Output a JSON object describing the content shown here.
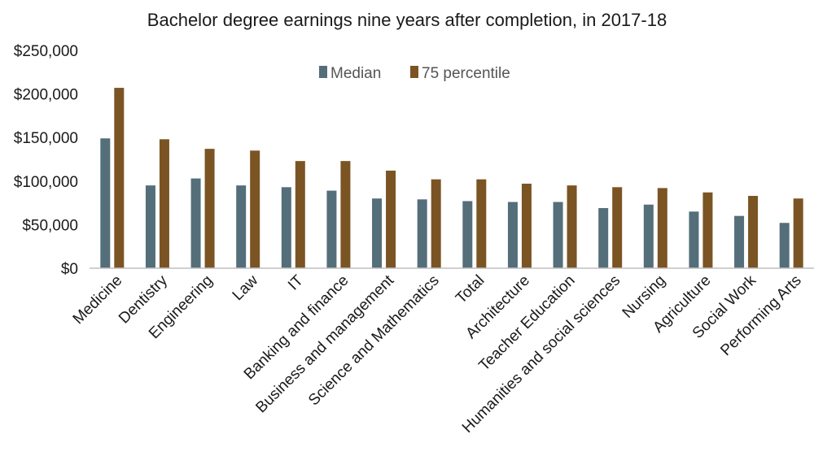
{
  "chart_data": {
    "type": "bar",
    "title": "Bachelor degree earnings nine years after completion, in 2017-18",
    "xlabel": "",
    "ylabel": "",
    "ylim": [
      0,
      250000
    ],
    "yticks": [
      0,
      50000,
      100000,
      150000,
      200000,
      250000
    ],
    "ytick_labels": [
      "$0",
      "$50,000",
      "$100,000",
      "$150,000",
      "$200,000",
      "$250,000"
    ],
    "grid": false,
    "legend_position": "top-center",
    "categories": [
      "Medicine",
      "Dentistry",
      "Engineering",
      "Law",
      "IT",
      "Banking and finance",
      "Business and management",
      "Science and Mathematics",
      "Total",
      "Architecture",
      "Teacher Education",
      "Humanities and social sciences",
      "Nursing",
      "Agriculture",
      "Social Work",
      "Performing Arts"
    ],
    "series": [
      {
        "name": "Median",
        "color": "#546e7a",
        "values": [
          149000,
          95000,
          103000,
          95000,
          93000,
          89000,
          80000,
          79000,
          77000,
          76000,
          76000,
          69000,
          73000,
          65000,
          60000,
          52000
        ]
      },
      {
        "name": "75 percentile",
        "color": "#7b5424",
        "values": [
          207000,
          148000,
          137000,
          135000,
          123000,
          123000,
          112000,
          102000,
          102000,
          97000,
          95000,
          93000,
          92000,
          87000,
          83000,
          80000
        ]
      }
    ]
  }
}
